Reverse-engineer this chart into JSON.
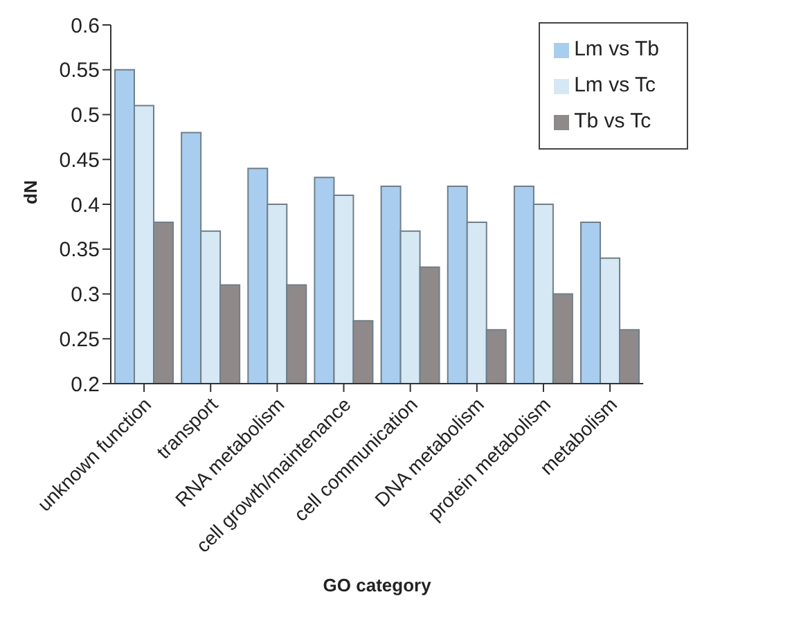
{
  "chart_data": {
    "type": "bar",
    "xlabel": "GO category",
    "ylabel": "dN",
    "categories": [
      "unknown function",
      "transport",
      "RNA metabolism",
      "cell growth/maintenance",
      "cell communication",
      "DNA metabolism",
      "protein metabolism",
      "metabolism"
    ],
    "series": [
      {
        "name": "Lm vs Tb",
        "color": "#a9cdee",
        "values": [
          0.55,
          0.48,
          0.44,
          0.43,
          0.42,
          0.42,
          0.42,
          0.38
        ]
      },
      {
        "name": "Lm vs Tc",
        "color": "#d6e8f3",
        "values": [
          0.51,
          0.37,
          0.4,
          0.41,
          0.37,
          0.38,
          0.4,
          0.34
        ]
      },
      {
        "name": "Tb vs Tc",
        "color": "#8f8a89",
        "values": [
          0.38,
          0.31,
          0.31,
          0.27,
          0.33,
          0.26,
          0.3,
          0.26
        ]
      }
    ],
    "ylim": [
      0.2,
      0.6
    ],
    "yticks": [
      0.2,
      0.25,
      0.3,
      0.35,
      0.4,
      0.45,
      0.5,
      0.55,
      0.6
    ],
    "grid": false,
    "legend": "top right"
  }
}
